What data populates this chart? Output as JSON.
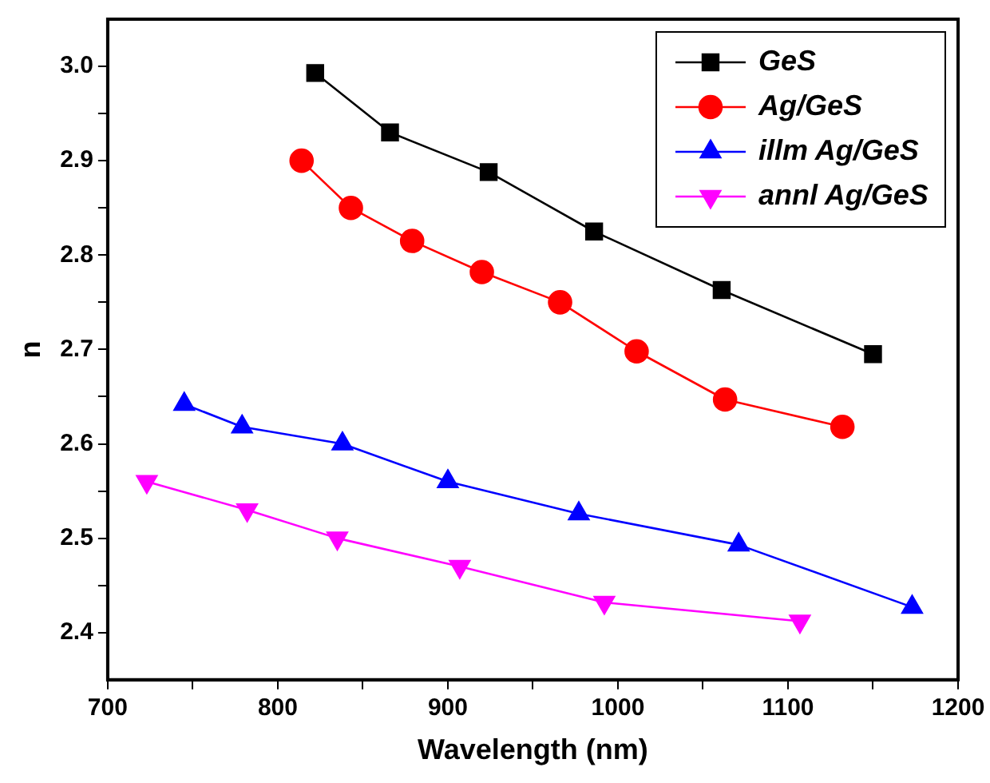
{
  "chart_data": {
    "type": "line",
    "xlabel": "Wavelength (nm)",
    "ylabel": "n",
    "xlim": [
      700,
      1200
    ],
    "xticks": [
      700,
      {
        "value": 750,
        "label": null
      },
      800,
      {
        "value": 850,
        "label": null
      },
      900,
      {
        "value": 950,
        "label": null
      },
      1000,
      {
        "value": 1050,
        "label": null
      },
      1100,
      {
        "value": 1150,
        "label": null
      },
      1200
    ],
    "ylim": [
      2.35,
      3.05
    ],
    "yticks": [
      2.4,
      {
        "value": 2.45,
        "label": null
      },
      2.5,
      {
        "value": 2.55,
        "label": null
      },
      2.6,
      {
        "value": 2.65,
        "label": null
      },
      2.7,
      {
        "value": 2.75,
        "label": null
      },
      2.8,
      {
        "value": 2.85,
        "label": null
      },
      2.9,
      {
        "value": 2.95,
        "label": null
      },
      {
        "value": 3,
        "label": "3.0"
      }
    ],
    "grid": false,
    "legend": "top right",
    "line_style": "solid",
    "series": [
      {
        "name": "GeS",
        "color": "#000000",
        "marker": "square",
        "x": [
          822,
          866,
          924,
          986,
          1061,
          1150
        ],
        "values": [
          2.993,
          2.93,
          2.888,
          2.825,
          2.763,
          2.695
        ]
      },
      {
        "name": "Ag/GeS",
        "color": "#ff0000",
        "marker": "circle",
        "x": [
          814,
          843,
          879,
          920,
          966,
          1011,
          1063,
          1132
        ],
        "values": [
          2.9,
          2.85,
          2.815,
          2.782,
          2.75,
          2.698,
          2.647,
          2.618
        ]
      },
      {
        "name": "illm Ag/GeS",
        "color": "#0000ff",
        "marker": "triangle",
        "x": [
          745,
          779,
          838,
          900,
          977,
          1071,
          1173
        ],
        "values": [
          2.642,
          2.618,
          2.6,
          2.56,
          2.526,
          2.493,
          2.427
        ]
      },
      {
        "name": "annl Ag/GeS",
        "color": "#ff00ff",
        "marker": "triangle-down",
        "x": [
          723,
          782,
          835,
          907,
          992,
          1107
        ],
        "values": [
          2.56,
          2.53,
          2.5,
          2.47,
          2.432,
          2.412
        ]
      }
    ]
  }
}
